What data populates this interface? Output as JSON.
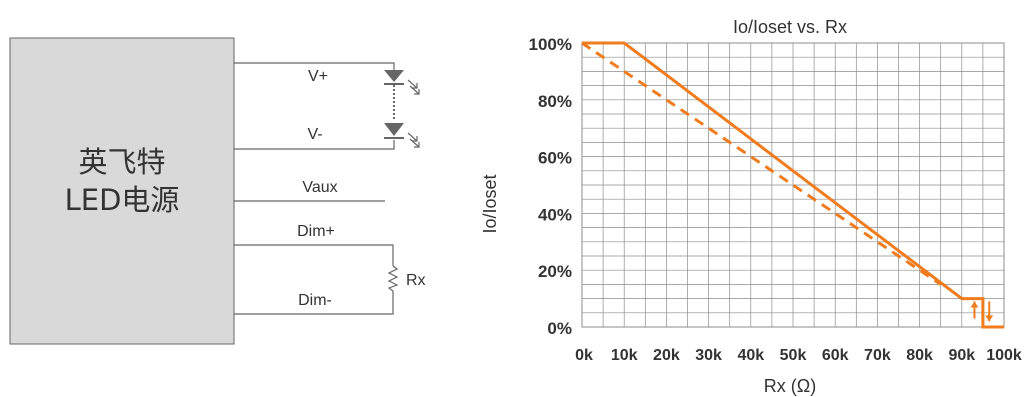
{
  "circuit": {
    "device_line1": "英飞特",
    "device_line2": "LED电源",
    "pins": {
      "vplus": "V+",
      "vminus": "V-",
      "vaux": "Vaux",
      "dimplus": "Dim+",
      "dimminus": "Dim-"
    },
    "resistor": "Rx"
  },
  "colors": {
    "series": "#F07C1E",
    "grid": "#8C8C8C",
    "box_fill": "#D9D9D9",
    "text": "#333333"
  },
  "chart_data": {
    "type": "line",
    "title": "Io/Ioset vs. Rx",
    "xlabel": "Rx (Ω)",
    "ylabel": "Io/Ioset",
    "xlim": [
      0,
      100
    ],
    "ylim": [
      0,
      100
    ],
    "xtick_labels": [
      "0k",
      "10k",
      "20k",
      "30k",
      "40k",
      "50k",
      "60k",
      "70k",
      "80k",
      "90k",
      "100k"
    ],
    "ytick_labels": [
      "0%",
      "20%",
      "40%",
      "60%",
      "80%",
      "100%"
    ],
    "grid": true,
    "series": [
      {
        "style": "solid",
        "x": [
          0,
          10,
          90,
          95,
          95,
          100
        ],
        "y": [
          100,
          100,
          10,
          10,
          0,
          0
        ]
      },
      {
        "style": "dashed",
        "x": [
          0,
          85
        ],
        "y": [
          100,
          15
        ]
      }
    ],
    "annotations": [
      {
        "type": "arrow-up",
        "x": 93,
        "y_from": 3,
        "y_to": 9
      },
      {
        "type": "arrow-down",
        "x": 96.5,
        "y_from": 9,
        "y_to": 2
      }
    ]
  }
}
